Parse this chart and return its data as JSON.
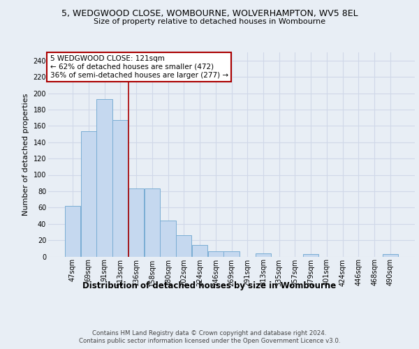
{
  "title": "5, WEDGWOOD CLOSE, WOMBOURNE, WOLVERHAMPTON, WV5 8EL",
  "subtitle": "Size of property relative to detached houses in Wombourne",
  "xlabel": "Distribution of detached houses by size in Wombourne",
  "ylabel": "Number of detached properties",
  "footer_line1": "Contains HM Land Registry data © Crown copyright and database right 2024.",
  "footer_line2": "Contains public sector information licensed under the Open Government Licence v3.0.",
  "annotation_title": "5 WEDGWOOD CLOSE: 121sqm",
  "annotation_line2": "← 62% of detached houses are smaller (472)",
  "annotation_line3": "36% of semi-detached houses are larger (277) →",
  "bar_labels": [
    "47sqm",
    "69sqm",
    "91sqm",
    "113sqm",
    "136sqm",
    "158sqm",
    "180sqm",
    "202sqm",
    "224sqm",
    "246sqm",
    "269sqm",
    "291sqm",
    "313sqm",
    "335sqm",
    "357sqm",
    "379sqm",
    "401sqm",
    "424sqm",
    "446sqm",
    "468sqm",
    "490sqm"
  ],
  "bar_values": [
    62,
    153,
    193,
    167,
    83,
    83,
    44,
    26,
    14,
    6,
    6,
    0,
    4,
    0,
    0,
    3,
    0,
    0,
    0,
    0,
    3
  ],
  "bar_color": "#c5d8ef",
  "bar_edge_color": "#7aadd4",
  "vline_color": "#aa0000",
  "vline_x": 3.5,
  "annotation_box_edgecolor": "#aa0000",
  "bg_color": "#e8eef5",
  "grid_color": "#d0d8e8",
  "ylim": [
    0,
    250
  ],
  "yticks": [
    0,
    20,
    40,
    60,
    80,
    100,
    120,
    140,
    160,
    180,
    200,
    220,
    240
  ],
  "title_fontsize": 9,
  "subtitle_fontsize": 8,
  "ylabel_fontsize": 8,
  "xlabel_fontsize": 8.5,
  "tick_fontsize": 7,
  "annotation_fontsize": 7.5,
  "footer_fontsize": 6.2
}
